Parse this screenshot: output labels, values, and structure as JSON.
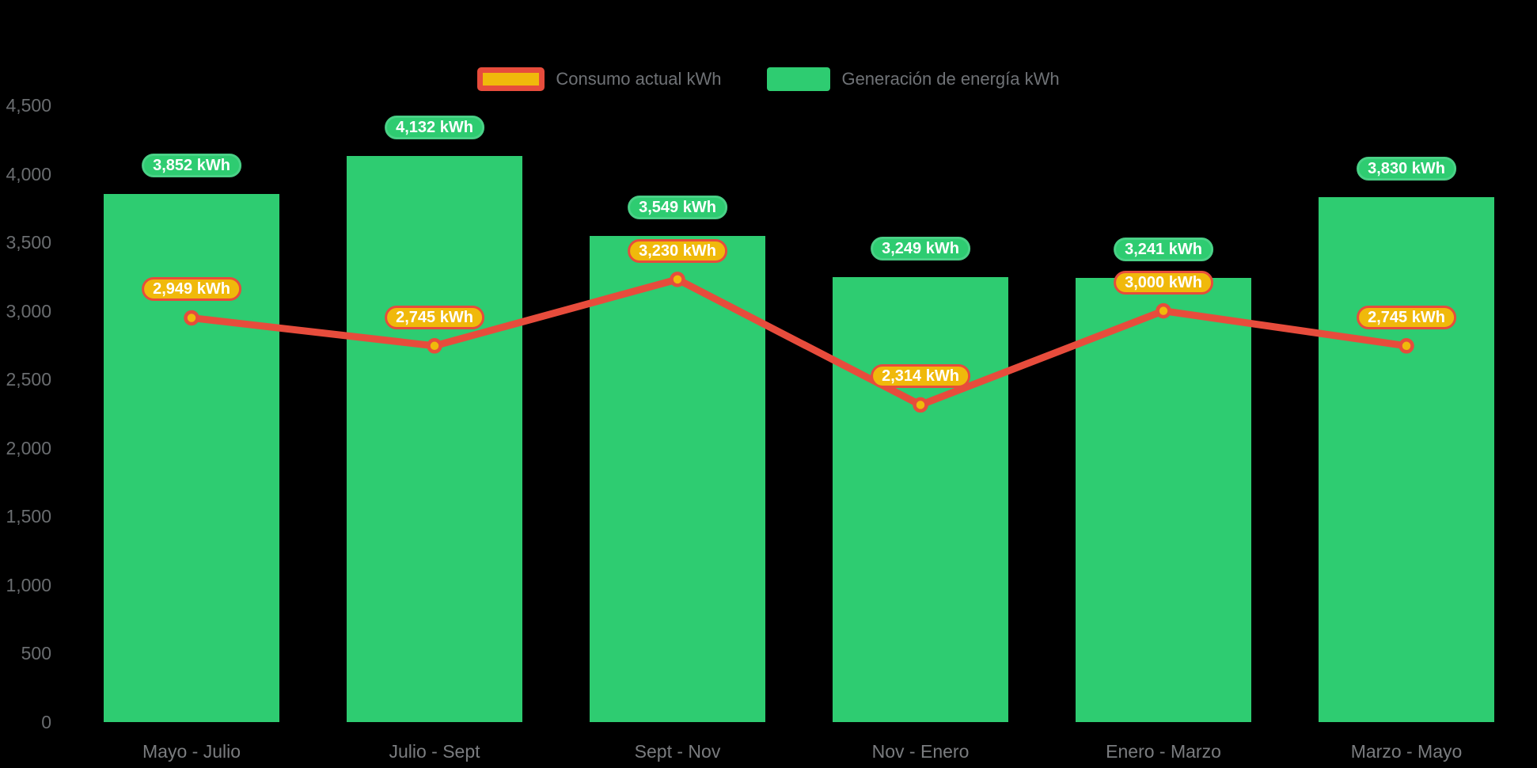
{
  "background_color": "#000000",
  "legend": {
    "items": [
      {
        "id": "consumo",
        "label": "Consumo actual kWh",
        "swatch_fill": "#f0b90b",
        "swatch_border": "#e74c3c",
        "swatch_type": "line-series"
      },
      {
        "id": "generacion",
        "label": "Generación de energía kWh",
        "swatch_fill": "#2ecc71",
        "swatch_border": "#2ecc71",
        "swatch_type": "bar-series"
      }
    ]
  },
  "chart_data": {
    "type": "bar+line",
    "title": "",
    "xlabel": "",
    "ylabel": "",
    "categories": [
      "Mayo - Julio",
      "Julio - Sept",
      "Sept - Nov",
      "Nov - Enero",
      "Enero - Marzo",
      "Marzo - Mayo"
    ],
    "series": [
      {
        "name": "Generación de energía kWh",
        "type": "bar",
        "color": "#2ecc71",
        "label_bg": "#2ecc71",
        "label_border": "#49d186",
        "values": [
          3852,
          4132,
          3549,
          3249,
          3241,
          3830
        ],
        "value_labels": [
          "3,852 kWh",
          "4,132 kWh",
          "3,549 kWh",
          "3,249 kWh",
          "3,241 kWh",
          "3,830 kWh"
        ]
      },
      {
        "name": "Consumo actual kWh",
        "type": "line",
        "color": "#e74c3c",
        "point_fill": "#f0b90b",
        "label_bg": "#f0b90b",
        "label_border": "#e74c3c",
        "values": [
          2949,
          2745,
          3230,
          2314,
          3000,
          2745
        ],
        "value_labels": [
          "2,949 kWh",
          "2,745 kWh",
          "3,230 kWh",
          "2,314 kWh",
          "3,000 kWh",
          "2,745 kWh"
        ]
      }
    ],
    "ylim": [
      0,
      4500
    ],
    "y_tick_step": 500,
    "y_tick_labels": [
      "0",
      "500",
      "1,000",
      "1,500",
      "2,000",
      "2,500",
      "3,000",
      "3,500",
      "4,000",
      "4,500"
    ],
    "grid": false,
    "legend_position": "top-center"
  }
}
